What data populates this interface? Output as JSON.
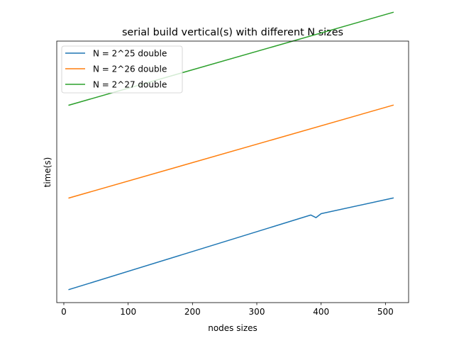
{
  "chart_data": {
    "type": "line",
    "title": "serial build vertical(s) with different N sizes",
    "xlabel": "nodes sizes",
    "ylabel": "time(s)",
    "xlim": [
      -11,
      536
    ],
    "ylim": [
      0,
      100
    ],
    "xticks": [
      0,
      100,
      200,
      300,
      400,
      500
    ],
    "xtick_labels": [
      "0",
      "100",
      "200",
      "300",
      "400",
      "500"
    ],
    "yticks_shown": false,
    "grid": false,
    "legend_position": "upper left",
    "series": [
      {
        "name": "N = 2^25 double",
        "color": "#1f77b4",
        "x": [
          8,
          384,
          392,
          400,
          512
        ],
        "y": [
          5,
          33.5,
          32.5,
          34,
          40
        ]
      },
      {
        "name": "N = 2^26 double",
        "color": "#ff7f0e",
        "x": [
          8,
          512
        ],
        "y": [
          40,
          75.5
        ]
      },
      {
        "name": "N = 2^27 double",
        "color": "#2ca02c",
        "x": [
          8,
          512
        ],
        "y": [
          75.5,
          111
        ]
      }
    ]
  }
}
